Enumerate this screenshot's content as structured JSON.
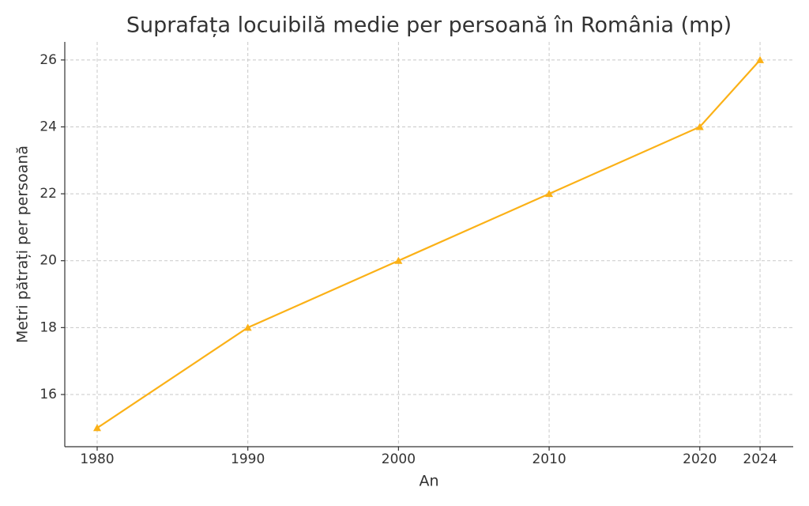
{
  "chart_data": {
    "type": "line",
    "title": "Suprafața locuibilă medie per persoană în România (mp)",
    "x_label": "An",
    "y_label": "Metri pătrați per persoană",
    "x": [
      1980,
      1990,
      2000,
      2010,
      2020,
      2024
    ],
    "values": [
      15,
      18,
      20,
      22,
      24,
      26
    ],
    "color": "#fbb117",
    "marker": "triangle",
    "xlim": [
      1977.85,
      2026.2
    ],
    "xticks": [
      1980,
      1990,
      2000,
      2010,
      2020,
      2024
    ],
    "ylim": [
      14.44,
      26.54
    ],
    "yticks": [
      16,
      18,
      20,
      22,
      24,
      26
    ],
    "grid": true
  }
}
